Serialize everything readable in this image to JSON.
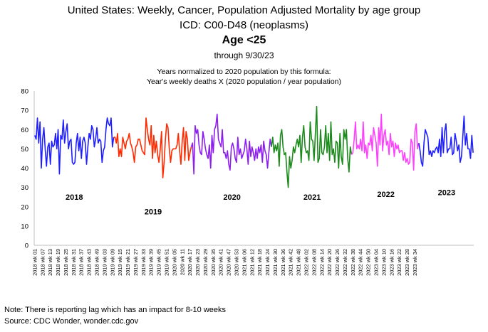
{
  "chart_data": {
    "type": "line",
    "title": "United States: Weekly, Cancer, Population Adjusted Mortality by age group",
    "subtitle": "ICD: C00-D48 (neoplasms)",
    "age_group": "Age <25",
    "through": "through 9/30/23",
    "note_line1": "Years normalized to 2020 population by this formula:",
    "note_line2": "Year's weekly deaths  X (2020 population / year population)",
    "xlabel": "",
    "ylabel": "",
    "ylim": [
      0,
      80
    ],
    "yticks": [
      "0",
      "10",
      "20",
      "30",
      "40",
      "50",
      "60",
      "70",
      "80"
    ],
    "xtick_labels": [
      "2018 wk 01",
      "2018 wk 07",
      "2018 wk 13",
      "2018 wk 19",
      "2018 wk 25",
      "2018 wk 31",
      "2018 wk 37",
      "2018 wk 43",
      "2018 wk 49",
      "2019 wk 03",
      "2019 wk 09",
      "2019 wk 15",
      "2019 wk 21",
      "2019 wk 27",
      "2019 wk 33",
      "2019 wk 39",
      "2019 wk 45",
      "2019 wk 51",
      "2020 wk 05",
      "2020 wk 11",
      "2020 wk 17",
      "2020 wk 23",
      "2020 wk 29",
      "2020 wk 35",
      "2020 wk 41",
      "2020 wk 47",
      "2020 wk 53",
      "2021 wk 06",
      "2021 wk 12",
      "2021 wk 18",
      "2021 wk 24",
      "2021 wk 30",
      "2021 wk 36",
      "2021 wk 42",
      "2021 wk 48",
      "2022 wk 02",
      "2022 wk 08",
      "2022 wk 14",
      "2022 wk 20",
      "2022 wk 26",
      "2022 wk 32",
      "2022 wk 38",
      "2022 wk 44",
      "2022 wk 50",
      "2023 wk 04",
      "2023 wk 10",
      "2023 wk 16",
      "2023 wk 22",
      "2023 wk 28",
      "2023 wk 34"
    ],
    "grid": false,
    "legend": "year labels inside plot",
    "series": [
      {
        "name": "2018",
        "color": "#1f1fff",
        "label_value": 25,
        "values": [
          57,
          55,
          66,
          53,
          64,
          40,
          55,
          61,
          50,
          41,
          51,
          53,
          42,
          54,
          51,
          52,
          58,
          50,
          60,
          37,
          57,
          55,
          65,
          53,
          59,
          63,
          50,
          54,
          55,
          43,
          42,
          43,
          53,
          58,
          49,
          56,
          45,
          54,
          56,
          53,
          42,
          51,
          58,
          55,
          62,
          60,
          51,
          55,
          61,
          53,
          55,
          54,
          43,
          49,
          51,
          60,
          66,
          63,
          62,
          66,
          51,
          56
        ]
      },
      {
        "name": "2019",
        "color": "#ff2a00",
        "label_value": 17.5,
        "values": [
          56,
          53,
          58,
          46,
          50,
          46,
          56,
          53,
          50,
          54,
          55,
          58,
          53,
          51,
          48,
          43,
          51,
          52,
          55,
          55,
          52,
          49,
          48,
          47,
          66,
          60,
          55,
          52,
          62,
          45,
          57,
          48,
          54,
          47,
          43,
          50,
          59,
          35,
          43,
          55,
          63,
          61,
          50,
          43,
          49,
          50,
          50,
          50,
          52,
          58,
          49,
          42,
          54,
          61,
          44,
          59,
          55,
          44,
          48,
          51
        ]
      },
      {
        "name": "2020",
        "color": "#8c1ff0",
        "label_value": 25,
        "values": [
          53,
          37,
          62,
          58,
          60,
          52,
          48,
          47,
          59,
          55,
          50,
          47,
          45,
          52,
          40,
          57,
          48,
          60,
          62,
          68,
          55,
          53,
          51,
          60,
          48,
          48,
          45,
          49,
          42,
          39,
          51,
          53,
          50,
          45,
          43,
          56,
          47,
          50,
          45,
          47,
          49,
          55,
          50,
          42,
          54,
          46,
          51,
          48,
          44,
          50,
          45,
          51,
          48,
          52,
          43,
          54,
          49,
          47,
          40,
          48,
          55,
          51
        ]
      },
      {
        "name": "2021",
        "color": "#1a8a1a",
        "label_value": 25,
        "values": [
          56,
          48,
          52,
          49,
          53,
          41,
          57,
          60,
          51,
          47,
          48,
          38,
          30,
          46,
          40,
          44,
          51,
          48,
          52,
          55,
          51,
          57,
          43,
          56,
          62,
          51,
          48,
          49,
          44,
          64,
          55,
          54,
          44,
          58,
          72,
          43,
          45,
          60,
          48,
          47,
          51,
          62,
          48,
          58,
          44,
          64,
          47,
          50,
          43,
          54,
          53,
          40,
          58,
          46,
          42,
          60,
          55,
          60,
          45,
          38,
          51,
          47
        ]
      },
      {
        "name": "2022",
        "color": "#ff3fff",
        "label_value": 26.5,
        "values": [
          48,
          55,
          64,
          50,
          52,
          50,
          55,
          49,
          64,
          48,
          52,
          45,
          53,
          52,
          57,
          49,
          61,
          57,
          53,
          41,
          61,
          52,
          68,
          49,
          57,
          60,
          52,
          54,
          47,
          58,
          51,
          54,
          46,
          53,
          50,
          52,
          48,
          49,
          49,
          44,
          48,
          43,
          45,
          42,
          43,
          55,
          53,
          39,
          59,
          63,
          50,
          53
        ]
      },
      {
        "name": "2023",
        "color": "#1f1fff",
        "label_value": 27.5,
        "values": [
          49,
          43,
          41,
          53,
          60,
          58,
          56,
          47,
          49,
          46,
          49,
          48,
          50,
          51,
          48,
          55,
          46,
          61,
          48,
          59,
          63,
          48,
          50,
          50,
          56,
          47,
          48,
          58,
          54,
          49,
          52,
          43,
          46,
          56,
          67,
          52,
          58,
          50,
          50,
          45,
          57,
          48
        ]
      }
    ]
  }
}
